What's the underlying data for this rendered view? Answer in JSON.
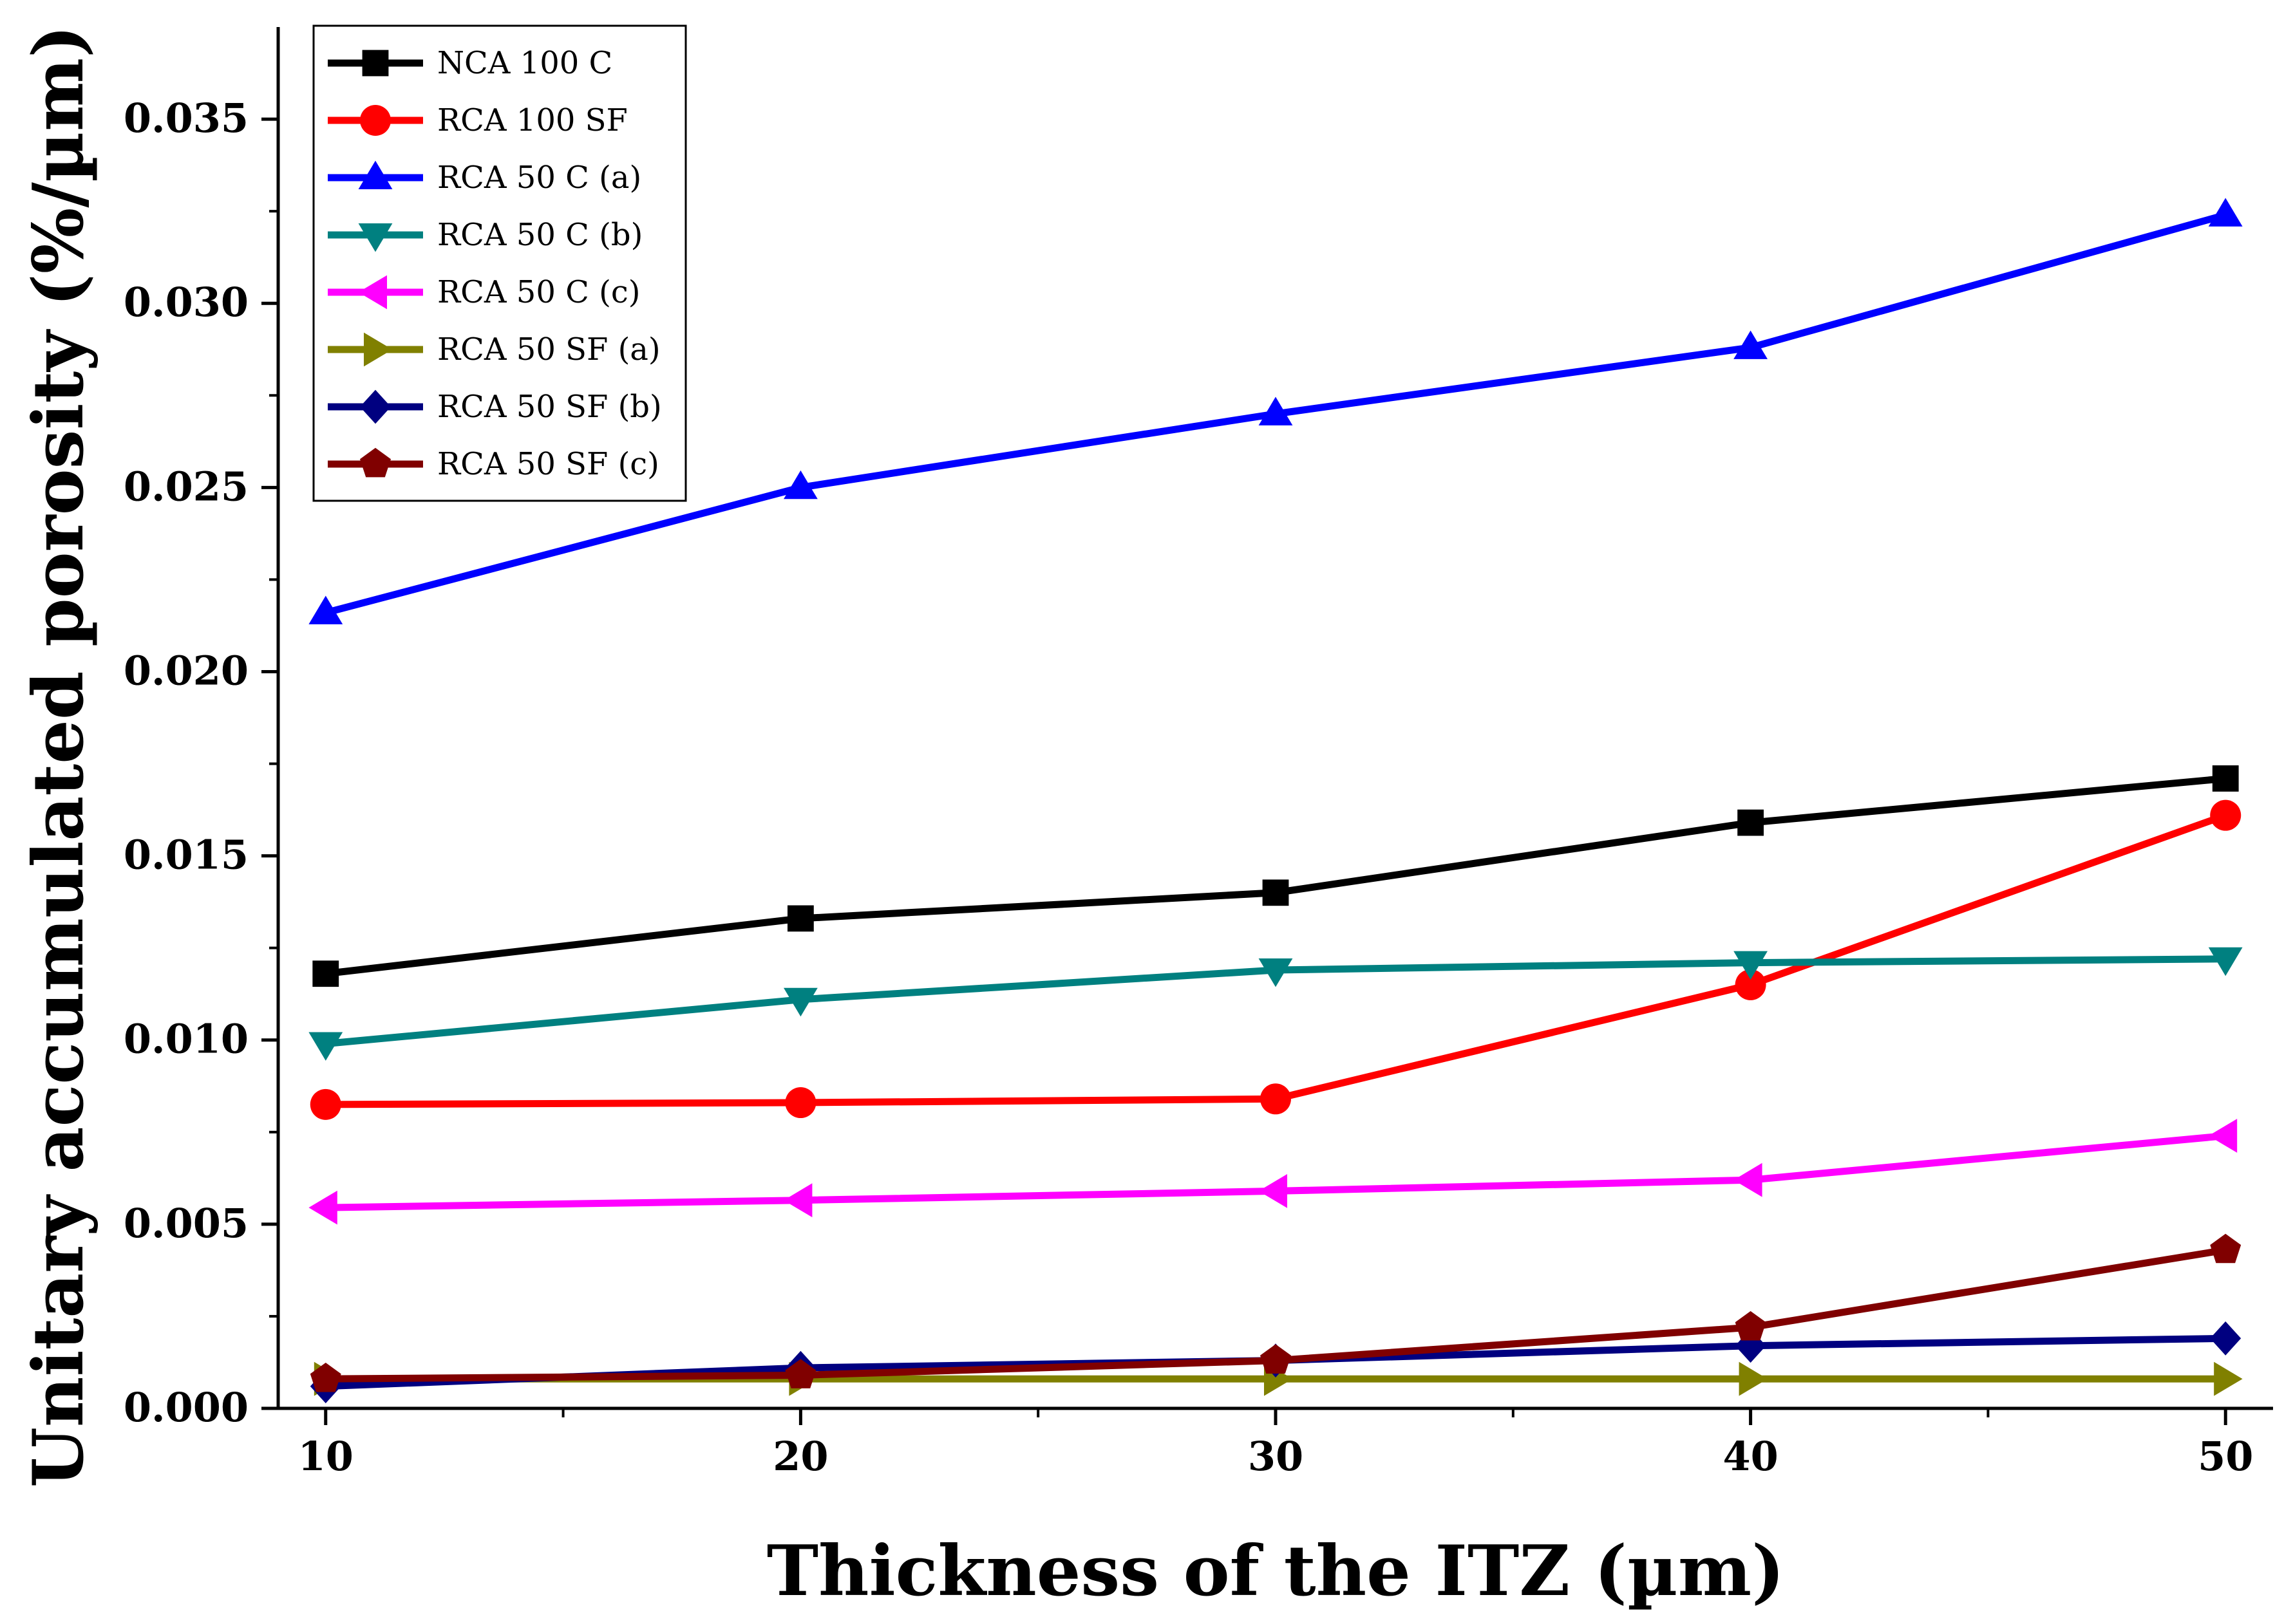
{
  "chart_data": {
    "type": "line",
    "xlabel": "Thickness of the ITZ (µm)",
    "ylabel": "Unitary accumulated porosity (%/µm)",
    "x": [
      10,
      20,
      30,
      40,
      50
    ],
    "xlim": [
      9,
      51
    ],
    "ylim": [
      0,
      0.0375
    ],
    "xticks": [
      "10",
      "20",
      "30",
      "40",
      "50"
    ],
    "yticks": [
      "0.000",
      "0.005",
      "0.010",
      "0.015",
      "0.020",
      "0.025",
      "0.030",
      "0.035"
    ],
    "legend_position": "top-left",
    "series": [
      {
        "name": "NCA 100 C",
        "color": "#000000",
        "marker": "square",
        "values": [
          0.0118,
          0.0133,
          0.014,
          0.0159,
          0.0171
        ]
      },
      {
        "name": "RCA 100 SF",
        "color": "#ff0000",
        "marker": "circle",
        "values": [
          0.00825,
          0.0083,
          0.0084,
          0.0115,
          0.0161
        ]
      },
      {
        "name": "RCA 50 C (a)",
        "color": "#0000ff",
        "marker": "triangle-up",
        "values": [
          0.0216,
          0.025,
          0.027,
          0.0288,
          0.0324
        ]
      },
      {
        "name": "RCA 50 C (b)",
        "color": "#008080",
        "marker": "triangle-down",
        "values": [
          0.0099,
          0.0111,
          0.0119,
          0.0121,
          0.0122
        ]
      },
      {
        "name": "RCA 50 C (c)",
        "color": "#ff00ff",
        "marker": "triangle-left",
        "values": [
          0.00545,
          0.00565,
          0.0059,
          0.0062,
          0.0074
        ]
      },
      {
        "name": "RCA 50 SF (a)",
        "color": "#808000",
        "marker": "triangle-right",
        "values": [
          0.0008,
          0.0008,
          0.0008,
          0.0008,
          0.0008
        ]
      },
      {
        "name": "RCA 50 SF (b)",
        "color": "#000080",
        "marker": "diamond",
        "values": [
          0.0006,
          0.0011,
          0.0013,
          0.0017,
          0.0019
        ]
      },
      {
        "name": "RCA 50 SF (c)",
        "color": "#800000",
        "marker": "pentagon",
        "values": [
          0.0008,
          0.0009,
          0.0013,
          0.0022,
          0.0043
        ]
      }
    ]
  }
}
